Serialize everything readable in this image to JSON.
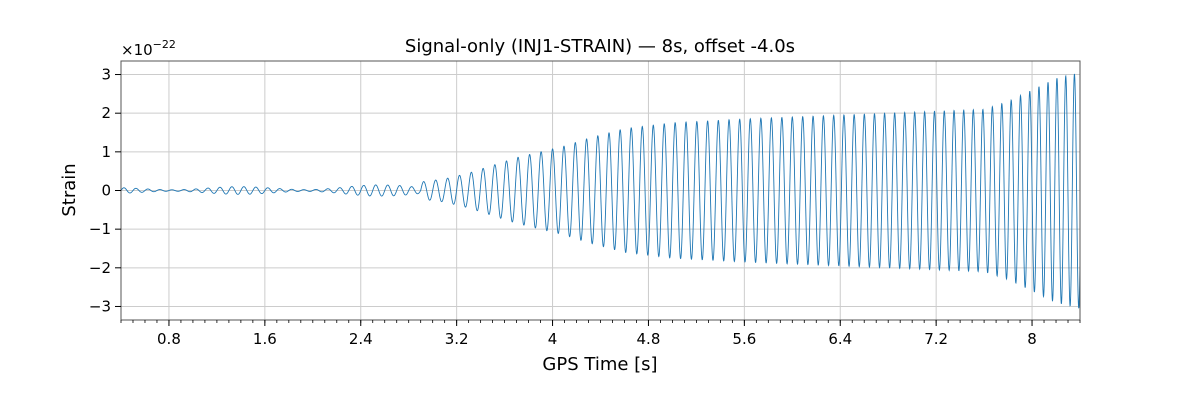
{
  "chart_data": {
    "type": "line",
    "title": "Signal-only (INJ1-STRAIN) — 8s, offset -4.0s",
    "xlabel": "GPS Time [s]",
    "ylabel": "Strain",
    "y_multiplier": {
      "base": "×10",
      "exponent": "−22"
    },
    "xlim": [
      0.4,
      8.4
    ],
    "ylim": [
      -3.35,
      3.35
    ],
    "x_ticks": [
      0.8,
      1.6,
      2.4,
      3.2,
      4.0,
      4.8,
      5.6,
      6.4,
      7.2,
      8.0
    ],
    "x_tick_labels": [
      "0.8",
      "1.6",
      "2.4",
      "3.2",
      "4",
      "4.8",
      "5.6",
      "6.4",
      "7.2",
      "8"
    ],
    "y_ticks": [
      -3,
      -2,
      -1,
      0,
      1,
      2,
      3
    ],
    "y_tick_labels": [
      "−3",
      "−2",
      "−1",
      "0",
      "1",
      "2",
      "3"
    ],
    "grid": true,
    "series": [
      {
        "color": "#1f77b4",
        "envelope": {
          "x": [
            0.4,
            1.0,
            1.6,
            2.2,
            2.6,
            2.9,
            3.1,
            3.3,
            3.5,
            3.7,
            3.9,
            4.1,
            4.3,
            4.6,
            5.0,
            5.6,
            6.0,
            6.4,
            6.8,
            7.2,
            7.6,
            7.8,
            8.0,
            8.2,
            8.4
          ],
          "amplitude": [
            0.08,
            0.1,
            0.1,
            0.12,
            0.15,
            0.22,
            0.3,
            0.45,
            0.65,
            0.85,
            1.0,
            1.15,
            1.35,
            1.6,
            1.75,
            1.85,
            1.9,
            1.95,
            2.0,
            2.05,
            2.1,
            2.3,
            2.6,
            2.9,
            3.05
          ]
        },
        "frequency_hz": {
          "x": [
            0.4,
            2.0,
            3.0,
            4.0,
            5.0,
            6.0,
            7.0,
            8.0,
            8.4
          ],
          "values": [
            10,
            10,
            10,
            10.5,
            11,
            11.5,
            12,
            13,
            14
          ]
        }
      }
    ]
  }
}
